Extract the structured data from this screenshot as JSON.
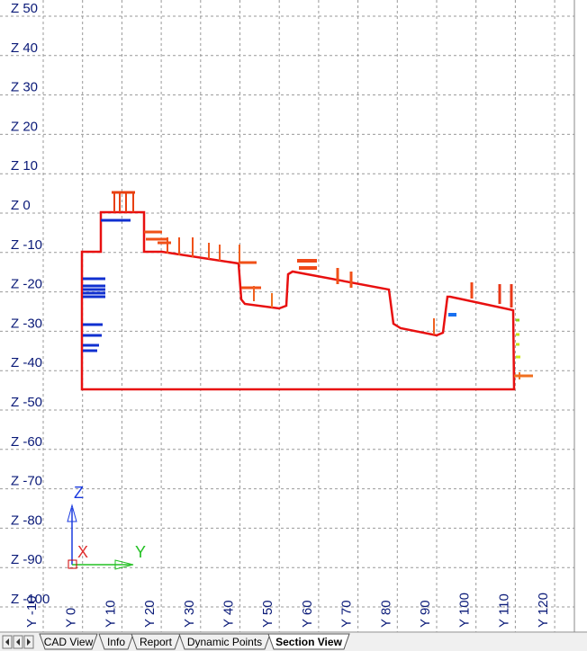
{
  "view": {
    "z_labels": [
      "Z 50",
      "Z 40",
      "Z 30",
      "Z 20",
      "Z 10",
      "Z 0",
      "Z -10",
      "Z -20",
      "Z -30",
      "Z -40",
      "Z -50",
      "Z -60",
      "Z -70",
      "Z -80",
      "Z -90",
      "Z -100"
    ],
    "y_labels": [
      "Y -10",
      "Y 0",
      "Y 10",
      "Y 20",
      "Y 30",
      "Y 40",
      "Y 50",
      "Y 60",
      "Y 70",
      "Y 80",
      "Y 90",
      "Y 100",
      "Y 110",
      "Y 120"
    ],
    "ucs": {
      "z": "Z",
      "y": "Y",
      "x": "X"
    }
  },
  "tabs": [
    "CAD View",
    "Info",
    "Report",
    "Dynamic Points",
    "Section View"
  ]
}
